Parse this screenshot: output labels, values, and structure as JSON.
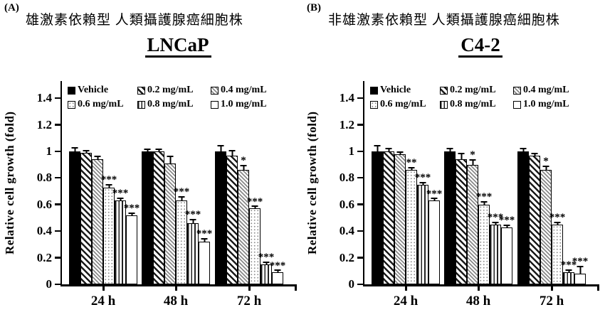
{
  "colors": {
    "foreground": "#000000",
    "background": "#ffffff",
    "hatch_gray": "#8a8a8a",
    "dot_gray": "#8f8f8f"
  },
  "chart_data": [
    {
      "type": "bar",
      "panel_label": "(A)",
      "subtitle_cjk": "雄激素依賴型 人類攝護腺癌細胞株",
      "title": "LNCaP",
      "ylabel": "Relative cell growth (fold)",
      "ylim": [
        0,
        1.4
      ],
      "grid": false,
      "legend_position": "top-inside",
      "categories": [
        "24 h",
        "48 h",
        "72 h"
      ],
      "yticks": [
        {
          "v": 0,
          "label": "0"
        },
        {
          "v": 0.2,
          "label": "0.2"
        },
        {
          "v": 0.4,
          "label": "0.4"
        },
        {
          "v": 0.6,
          "label": "0.6"
        },
        {
          "v": 0.8,
          "label": "0.8"
        },
        {
          "v": 1,
          "label": "1"
        },
        {
          "v": 1.2,
          "label": "1.2"
        },
        {
          "v": 1.4,
          "label": "1.4"
        }
      ],
      "series": [
        {
          "name": "Vehicle",
          "pattern": "solid-black",
          "values": [
            1.0,
            1.0,
            1.0
          ],
          "errors": [
            0.02,
            0.01,
            0.04
          ],
          "sig": [
            "",
            "",
            ""
          ]
        },
        {
          "name": "0.2 mg/mL",
          "pattern": "diagonal-hatch",
          "values": [
            0.99,
            1.0,
            0.97
          ],
          "errors": [
            0.01,
            0.01,
            0.03
          ],
          "sig": [
            "",
            "",
            ""
          ]
        },
        {
          "name": "0.4 mg/mL",
          "pattern": "diagonal-hatch-fine",
          "values": [
            0.94,
            0.91,
            0.86
          ],
          "errors": [
            0.015,
            0.05,
            0.03
          ],
          "sig": [
            "",
            "",
            "*"
          ]
        },
        {
          "name": "0.6 mg/mL",
          "pattern": "dots",
          "values": [
            0.73,
            0.63,
            0.57
          ],
          "errors": [
            0.015,
            0.02,
            0.01
          ],
          "sig": [
            "***",
            "***",
            "***"
          ]
        },
        {
          "name": "0.8 mg/mL",
          "pattern": "vertical-lines",
          "values": [
            0.63,
            0.46,
            0.15
          ],
          "errors": [
            0.01,
            0.02,
            0.01
          ],
          "sig": [
            "***",
            "***",
            "***"
          ]
        },
        {
          "name": "1.0 mg/mL",
          "pattern": "plain-white",
          "values": [
            0.52,
            0.32,
            0.09
          ],
          "errors": [
            0.01,
            0.015,
            0.005
          ],
          "sig": [
            "***",
            "***",
            "***"
          ]
        }
      ]
    },
    {
      "type": "bar",
      "panel_label": "(B)",
      "subtitle_cjk": "非雄激素依賴型 人類攝護腺癌細胞株",
      "title": "C4-2",
      "ylabel": "Relative cell growth (fold)",
      "ylim": [
        0,
        1.4
      ],
      "grid": false,
      "legend_position": "top-inside",
      "categories": [
        "24 h",
        "48 h",
        "72 h"
      ],
      "yticks": [
        {
          "v": 0,
          "label": "0"
        },
        {
          "v": 0.2,
          "label": "0.2"
        },
        {
          "v": 0.4,
          "label": "0.4"
        },
        {
          "v": 0.6,
          "label": "0.6"
        },
        {
          "v": 0.8,
          "label": "0.8"
        },
        {
          "v": 1,
          "label": "1"
        },
        {
          "v": 1.2,
          "label": "1.2"
        },
        {
          "v": 1.4,
          "label": "1.4"
        }
      ],
      "series": [
        {
          "name": "Vehicle",
          "pattern": "solid-black",
          "values": [
            1.0,
            1.0,
            1.0
          ],
          "errors": [
            0.04,
            0.015,
            0.015
          ],
          "sig": [
            "",
            "",
            ""
          ]
        },
        {
          "name": "0.2 mg/mL",
          "pattern": "diagonal-hatch",
          "values": [
            1.0,
            0.94,
            0.97
          ],
          "errors": [
            0.015,
            0.04,
            0.01
          ],
          "sig": [
            "",
            "",
            ""
          ]
        },
        {
          "name": "0.4 mg/mL",
          "pattern": "diagonal-hatch-fine",
          "values": [
            0.98,
            0.9,
            0.86
          ],
          "errors": [
            0.01,
            0.03,
            0.025
          ],
          "sig": [
            "",
            "*",
            "*"
          ]
        },
        {
          "name": "0.6 mg/mL",
          "pattern": "dots",
          "values": [
            0.86,
            0.6,
            0.45
          ],
          "errors": [
            0.01,
            0.015,
            0.01
          ],
          "sig": [
            "**",
            "***",
            "***"
          ]
        },
        {
          "name": "0.8 mg/mL",
          "pattern": "vertical-lines",
          "values": [
            0.75,
            0.45,
            0.09
          ],
          "errors": [
            0.01,
            0.01,
            0.01
          ],
          "sig": [
            "***",
            "***",
            "***"
          ]
        },
        {
          "name": "1.0 mg/mL",
          "pattern": "plain-white",
          "values": [
            0.63,
            0.43,
            0.08
          ],
          "errors": [
            0.005,
            0.01,
            0.05
          ],
          "sig": [
            "***",
            "***",
            "***"
          ]
        }
      ]
    }
  ]
}
